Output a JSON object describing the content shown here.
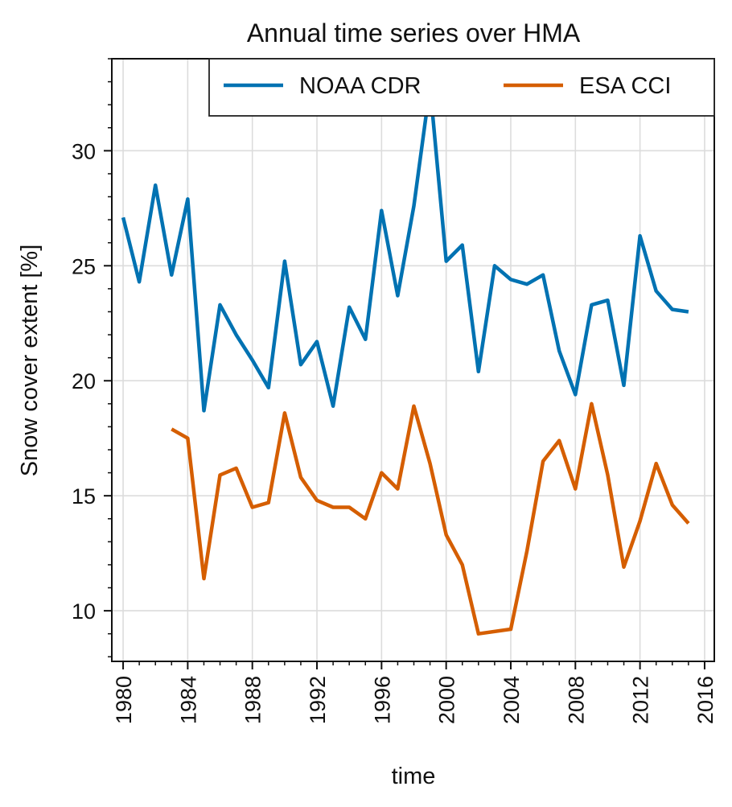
{
  "chart_data": {
    "type": "line",
    "title": "Annual time series over HMA",
    "xlabel": "time",
    "ylabel": "Snow cover extent [%]",
    "xlim": [
      1979.3,
      2016.6
    ],
    "ylim": [
      7.8,
      34.0
    ],
    "xticks": [
      1980,
      1984,
      1988,
      1992,
      1996,
      2000,
      2004,
      2008,
      2012,
      2016
    ],
    "yticks": [
      10,
      15,
      20,
      25,
      30
    ],
    "grid": true,
    "legend_position": "top-right",
    "series": [
      {
        "name": "NOAA CDR",
        "color": "#0072b2",
        "x": [
          1980,
          1981,
          1982,
          1983,
          1984,
          1985,
          1986,
          1987,
          1988,
          1989,
          1990,
          1991,
          1992,
          1993,
          1994,
          1995,
          1996,
          1997,
          1998,
          1999,
          2000,
          2001,
          2002,
          2003,
          2004,
          2005,
          2006,
          2007,
          2008,
          2009,
          2010,
          2011,
          2012,
          2013,
          2014,
          2015
        ],
        "values": [
          27.1,
          24.3,
          28.5,
          24.6,
          27.9,
          18.7,
          23.3,
          22.0,
          20.9,
          19.7,
          25.2,
          20.7,
          21.7,
          18.9,
          23.2,
          21.8,
          27.4,
          23.7,
          27.6,
          32.8,
          25.2,
          25.9,
          20.4,
          25.0,
          24.4,
          24.2,
          24.6,
          21.3,
          19.4,
          23.3,
          23.5,
          19.8,
          26.3,
          23.9,
          23.1,
          23.0
        ]
      },
      {
        "name": "ESA CCI",
        "color": "#d55e00",
        "x": [
          1983,
          1984,
          1985,
          1986,
          1987,
          1988,
          1989,
          1990,
          1991,
          1992,
          1993,
          1994,
          1995,
          1996,
          1997,
          1998,
          1999,
          2000,
          2001,
          2002,
          2004,
          2005,
          2006,
          2007,
          2008,
          2009,
          2010,
          2011,
          2012,
          2013,
          2014,
          2015
        ],
        "values": [
          17.9,
          17.5,
          11.4,
          15.9,
          16.2,
          14.5,
          14.7,
          18.6,
          15.8,
          14.8,
          14.5,
          14.5,
          14.0,
          16.0,
          15.3,
          18.9,
          16.4,
          13.3,
          12.0,
          9.0,
          9.2,
          12.6,
          16.5,
          17.4,
          15.3,
          19.0,
          15.9,
          11.9,
          13.9,
          16.4,
          14.6,
          13.8
        ]
      }
    ]
  }
}
